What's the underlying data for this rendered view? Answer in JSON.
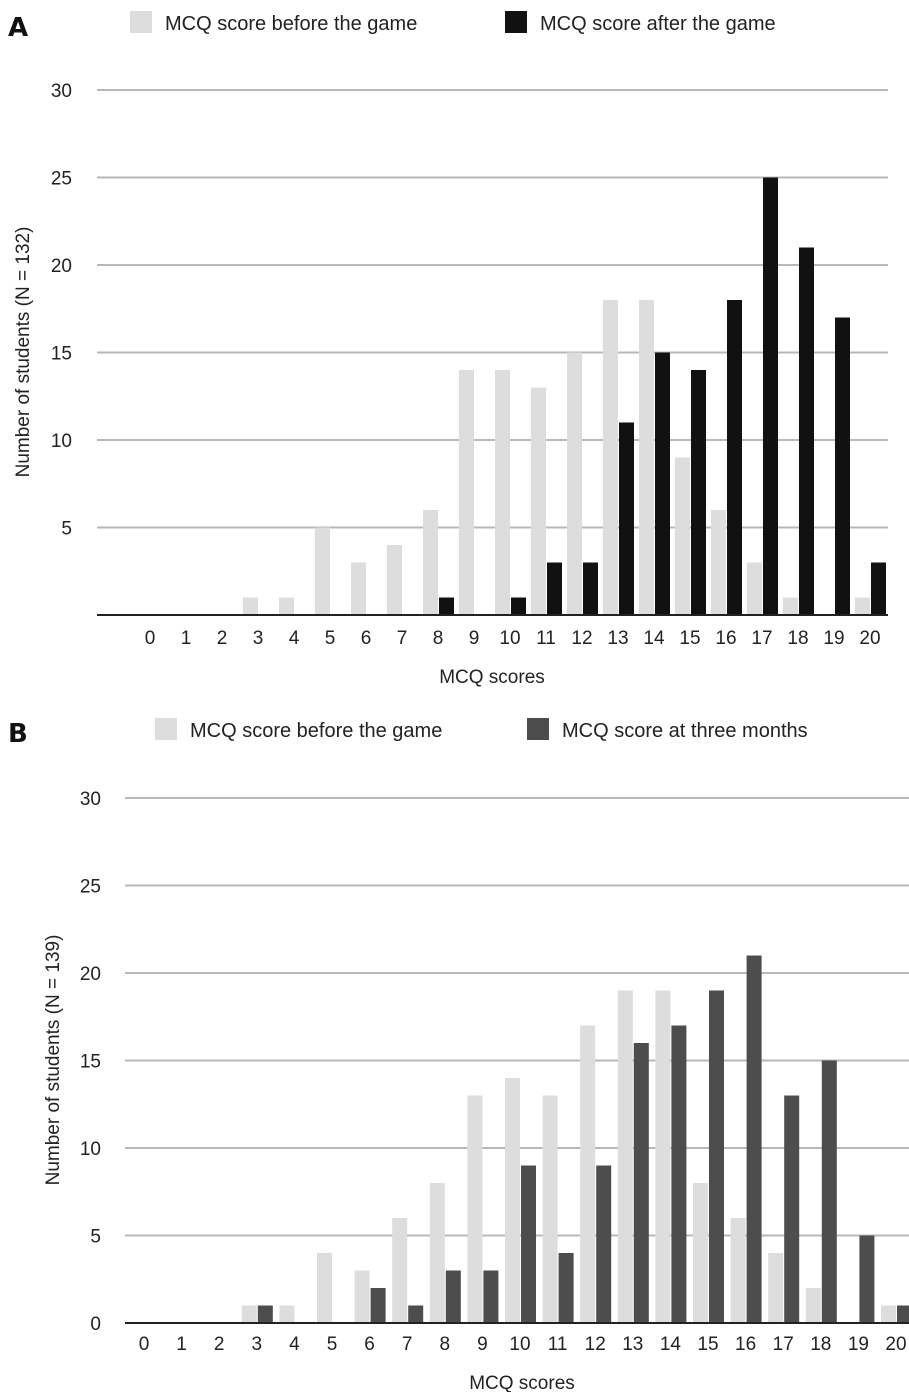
{
  "chart_data": [
    {
      "panel": "A",
      "type": "bar",
      "categories": [
        "0",
        "1",
        "2",
        "3",
        "4",
        "5",
        "6",
        "7",
        "8",
        "9",
        "10",
        "11",
        "12",
        "13",
        "14",
        "15",
        "16",
        "17",
        "18",
        "19",
        "20"
      ],
      "series": [
        {
          "name": "MCQ score before the game",
          "color": "#dcdddc",
          "values": [
            0,
            0,
            0,
            1,
            1,
            5,
            3,
            4,
            6,
            14,
            14,
            13,
            15,
            18,
            18,
            9,
            6,
            3,
            1,
            0,
            1
          ]
        },
        {
          "name": "MCQ score after the game",
          "color": "#111111",
          "values": [
            0,
            0,
            0,
            0,
            0,
            0,
            0,
            0,
            1,
            0,
            1,
            3,
            3,
            11,
            15,
            14,
            18,
            25,
            21,
            17,
            3
          ]
        }
      ],
      "xlabel": "MCQ scores",
      "ylabel": "Number of students (N = 132)",
      "ylim": [
        0,
        30
      ],
      "yticks": [
        "5",
        "10",
        "15",
        "20",
        "25",
        "30"
      ],
      "grid": true,
      "legend": "top"
    },
    {
      "panel": "B",
      "type": "bar",
      "categories": [
        "0",
        "1",
        "2",
        "3",
        "4",
        "5",
        "6",
        "7",
        "8",
        "9",
        "10",
        "11",
        "12",
        "13",
        "14",
        "15",
        "16",
        "17",
        "18",
        "19",
        "20"
      ],
      "series": [
        {
          "name": "MCQ score before the game",
          "color": "#dcdddc",
          "values": [
            0,
            0,
            0,
            1,
            1,
            4,
            3,
            6,
            8,
            13,
            14,
            13,
            17,
            19,
            19,
            8,
            6,
            4,
            2,
            0,
            1
          ]
        },
        {
          "name": "MCQ score at three months",
          "color": "#4d4d4d",
          "values": [
            0,
            0,
            0,
            1,
            0,
            0,
            2,
            1,
            3,
            3,
            9,
            4,
            9,
            16,
            17,
            19,
            21,
            13,
            15,
            5,
            1
          ]
        }
      ],
      "xlabel": "MCQ scores",
      "ylabel": "Number of students (N = 139)",
      "ylim": [
        0,
        30
      ],
      "yticks": [
        "0",
        "5",
        "10",
        "15",
        "20",
        "25",
        "30"
      ],
      "grid": true,
      "legend": "top"
    }
  ]
}
